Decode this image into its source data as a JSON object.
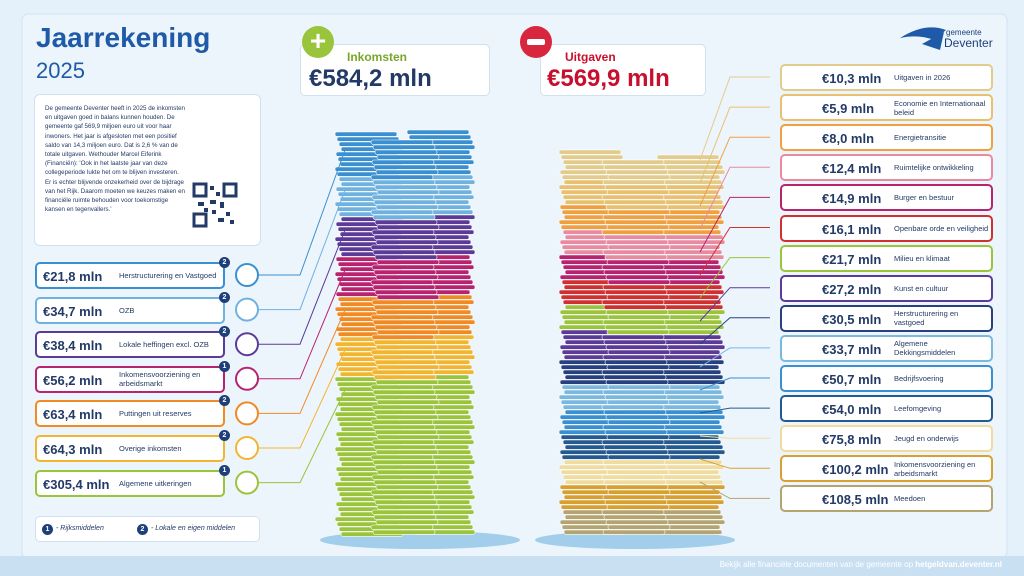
{
  "header": {
    "title": "Jaarrekening",
    "year": "2025"
  },
  "logo": {
    "line1": "gemeente",
    "line2": "Deventer"
  },
  "intro": "De gemeente Deventer heeft in 2025 de inkomsten en uitgaven goed in balans kunnen houden. De gemeente gaf 569,9 miljoen euro uit voor haar inwoners. Het jaar is afgesloten met een positief saldo van 14,3 miljoen euro. Dat is 2,6 % van de totale uitgaven. Wethouder Marcel Eiferink (Financiën): 'Ook in het laatste jaar van deze collegeperiode lukte het om te blijven investeren. Er is echter blijvende onzekerheid over de bijdrage van het Rijk. Daarom moeten we keuzes maken en financiële ruimte behouden voor toekomstige kansen en tegenvallers.'",
  "summary": {
    "income": {
      "label": "Inkomsten",
      "amount": "€584,2 mln"
    },
    "expenses": {
      "label": "Uitgaven",
      "amount": "€569,9 mln"
    }
  },
  "income_items": [
    {
      "amount": "€21,8 mln",
      "label": "Herstructurering en Vastgoed",
      "badge": "2",
      "color": "#3a8fd0"
    },
    {
      "amount": "€34,7 mln",
      "label": "OZB",
      "badge": "2",
      "color": "#6fb2e0"
    },
    {
      "amount": "€38,4 mln",
      "label": "Lokale heffingen excl. OZB",
      "badge": "2",
      "color": "#5b3a98"
    },
    {
      "amount": "€56,2 mln",
      "label": "Inkomensvoorziening en arbeidsmarkt",
      "badge": "1",
      "color": "#b8236f"
    },
    {
      "amount": "€63,4 mln",
      "label": "Puttingen uit reserves",
      "badge": "2",
      "color": "#f08a24"
    },
    {
      "amount": "€64,3 mln",
      "label": "Overige inkomsten",
      "badge": "2",
      "color": "#f2b531"
    },
    {
      "amount": "€305,4 mln",
      "label": "Algemene uitkeringen",
      "badge": "1",
      "color": "#9ac43c"
    }
  ],
  "legend": [
    {
      "badge": "1",
      "label": "- Rijksmiddelen"
    },
    {
      "badge": "2",
      "label": "- Lokale en eigen middelen"
    }
  ],
  "expense_items": [
    {
      "amount": "€10,3 mln",
      "label": "Uitgaven in 2026",
      "color": "#e2cb8c"
    },
    {
      "amount": "€5,9 mln",
      "label": "Economie en Internationaal beleid",
      "color": "#e8c070"
    },
    {
      "amount": "€8,0 mln",
      "label": "Energietransitie",
      "color": "#f0a040"
    },
    {
      "amount": "€12,4 mln",
      "label": "Ruimtelijke ontwikkeling",
      "color": "#e88aa0"
    },
    {
      "amount": "€14,9 mln",
      "label": "Burger en bestuur",
      "color": "#b8236f"
    },
    {
      "amount": "€16,1 mln",
      "label": "Openbare orde en veiligheid",
      "color": "#d03030"
    },
    {
      "amount": "€21,7 mln",
      "label": "Milieu en klimaat",
      "color": "#9ac43c"
    },
    {
      "amount": "€27,2 mln",
      "label": "Kunst en cultuur",
      "color": "#5b3a98"
    },
    {
      "amount": "€30,5 mln",
      "label": "Herstructurering en vastgoed",
      "color": "#27407f"
    },
    {
      "amount": "€33,7 mln",
      "label": "Algemene Dekkingsmiddelen",
      "color": "#7ab8e0"
    },
    {
      "amount": "€50,7 mln",
      "label": "Bedrijfsvoering",
      "color": "#3a8fd0"
    },
    {
      "amount": "€54,0 mln",
      "label": "Leefomgeving",
      "color": "#245a90"
    },
    {
      "amount": "€75,8 mln",
      "label": "Jeugd en onderwijs",
      "color": "#efdc9e"
    },
    {
      "amount": "€100,2 mln",
      "label": "Inkomensvoorziening en arbeidsmarkt",
      "color": "#d8a030"
    },
    {
      "amount": "€108,5 mln",
      "label": "Meedoen",
      "color": "#b4a472"
    }
  ],
  "footer": {
    "text": "Bekijk alle financiële documenten van de gemeente op",
    "link": "hetgeldvan.deventer.nl"
  }
}
